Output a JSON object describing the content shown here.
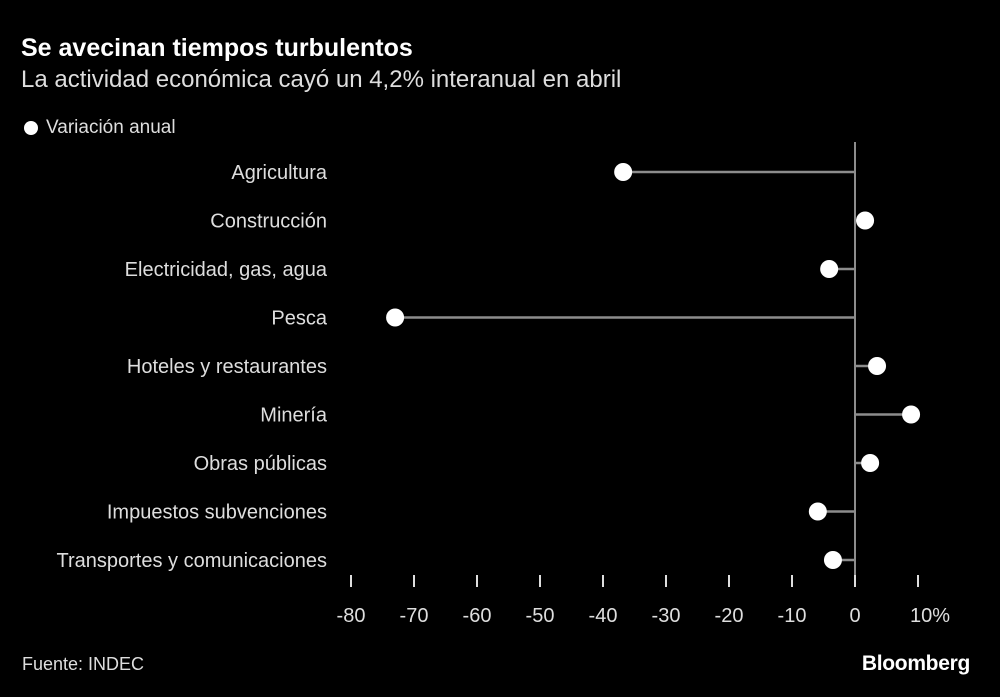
{
  "header": {
    "title": "Se avecinan tiempos turbulentos",
    "subtitle": "La actividad económica cayó un 4,2% interanual en abril"
  },
  "legend": {
    "label": "Variación anual"
  },
  "footer": {
    "source": "Fuente: INDEC",
    "brand": "Bloomberg"
  },
  "colors": {
    "background": "#000000",
    "dot": "#ffffff",
    "stem": "#8c8c8c",
    "text": "#dedede"
  },
  "chart_data": {
    "type": "lollipop",
    "orientation": "horizontal",
    "series": [
      {
        "name": "Variación anual",
        "categories": [
          "Agricultura",
          "Construcción",
          "Electricidad, gas, agua",
          "Pesca",
          "Hoteles y restaurantes",
          "Minería",
          "Obras públicas",
          "Impuestos subvenciones",
          "Transportes y comunicaciones"
        ],
        "values": [
          -36.8,
          1.6,
          -4.1,
          -73,
          3.5,
          8.9,
          2.4,
          -5.9,
          -3.5
        ]
      }
    ],
    "x_ticks": [
      -80,
      -70,
      -60,
      -50,
      -40,
      -30,
      -20,
      -10,
      0,
      10
    ],
    "x_tick_labels": [
      "-80",
      "-70",
      "-60",
      "-50",
      "-40",
      "-30",
      "-20",
      "-10",
      "0",
      "10%"
    ],
    "xlim": [
      -80,
      10
    ],
    "grid": false,
    "legend_position": "top-left"
  }
}
